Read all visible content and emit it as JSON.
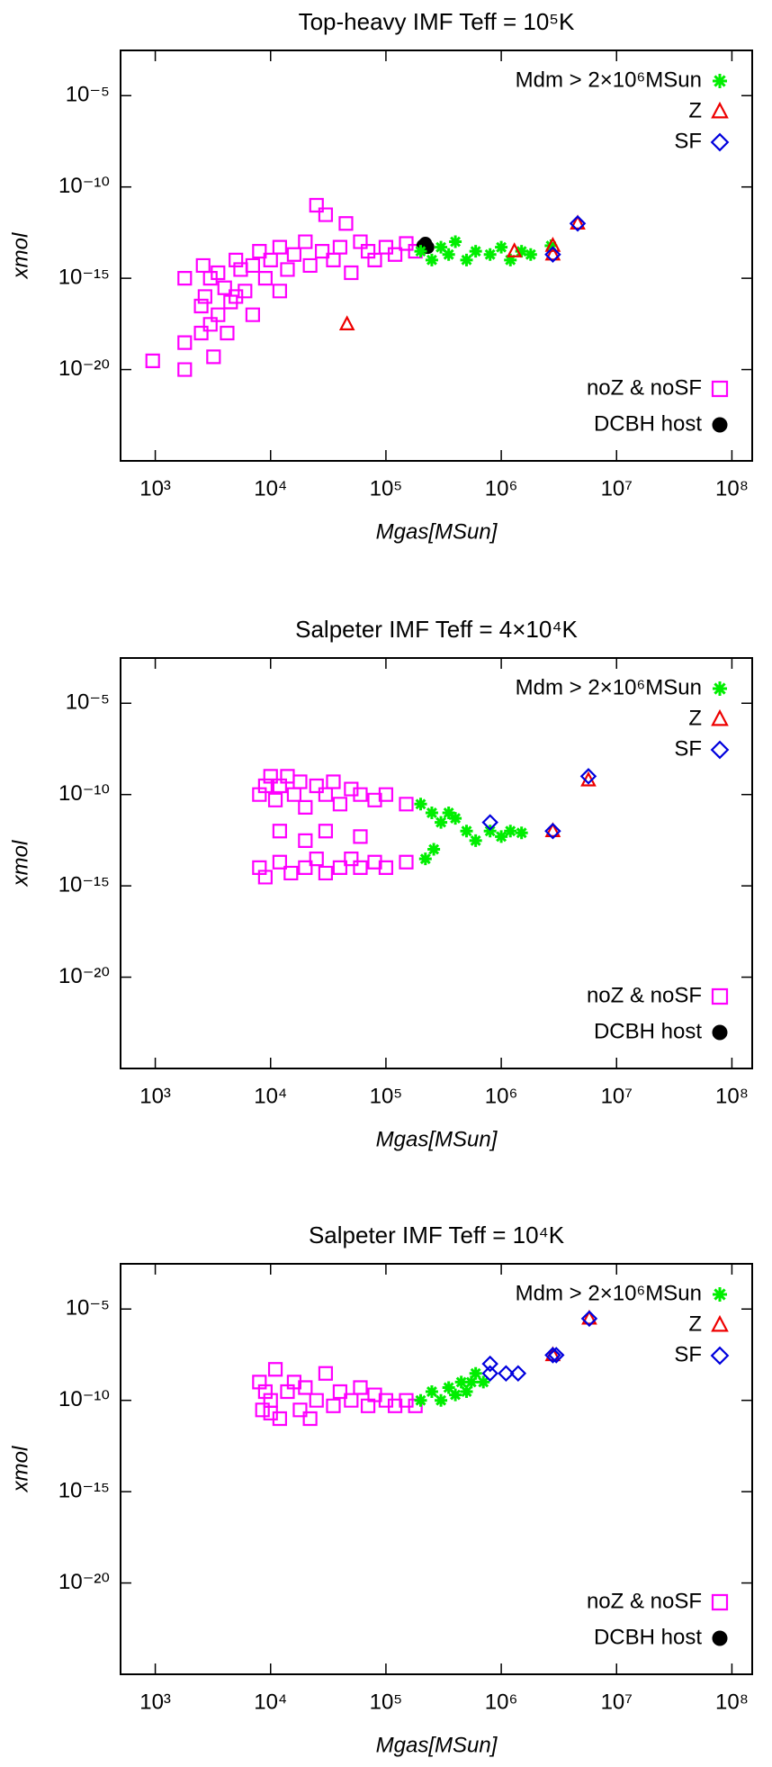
{
  "chart_data": [
    {
      "type": "scatter",
      "title": "Top-heavy IMF Teff = 10⁵K",
      "xlabel": "Mgas[MSun]",
      "ylabel": "xmol",
      "xlim": [
        500,
        150000000
      ],
      "ylim": [
        1e-25,
        0.003
      ],
      "log_x": true,
      "log_y": true,
      "xticks": [
        {
          "value": 1000,
          "label": "10³"
        },
        {
          "value": 10000,
          "label": "10⁴"
        },
        {
          "value": 100000,
          "label": "10⁵"
        },
        {
          "value": 1000000,
          "label": "10⁶"
        },
        {
          "value": 10000000,
          "label": "10⁷"
        },
        {
          "value": 100000000,
          "label": "10⁸"
        }
      ],
      "yticks": [
        {
          "value": 1e-05,
          "label": "10⁻⁵"
        },
        {
          "value": 1e-10,
          "label": "10⁻¹⁰"
        },
        {
          "value": 1e-15,
          "label": "10⁻¹⁵"
        },
        {
          "value": 1e-20,
          "label": "10⁻²⁰"
        }
      ],
      "series": [
        {
          "name": "noZ & noSF",
          "color": "#ff00ff",
          "marker": "square",
          "legend": "lower right",
          "x": [
            950,
            1800,
            1800,
            1800,
            2500,
            2500,
            2600,
            2700,
            3000,
            3200,
            3500,
            3500,
            4000,
            4200,
            4500,
            5000,
            5500,
            6000,
            7000,
            8000,
            9000,
            10000,
            12000,
            14000,
            16000,
            20000,
            22000,
            25000,
            28000,
            30000,
            35000,
            40000,
            45000,
            50000,
            60000,
            70000,
            80000,
            100000,
            120000,
            150000,
            180000,
            7000,
            5000,
            12000,
            3000
          ],
          "y": [
            3e-20,
            1e-20,
            3e-19,
            1e-15,
            3e-17,
            1e-18,
            5e-15,
            1e-16,
            3e-18,
            5e-20,
            1e-17,
            2e-15,
            3e-16,
            1e-18,
            5e-17,
            1e-14,
            3e-15,
            2e-16,
            5e-15,
            3e-14,
            1e-15,
            1e-14,
            5e-14,
            3e-15,
            2e-14,
            1e-13,
            5e-15,
            1e-11,
            3e-14,
            3e-12,
            1e-14,
            5e-14,
            1e-12,
            2e-15,
            1e-13,
            3e-14,
            1e-14,
            5e-14,
            2e-14,
            8e-14,
            3e-14,
            1e-17,
            1e-16,
            2e-16,
            1e-15
          ]
        },
        {
          "name": "DCBH host",
          "color": "#000000",
          "marker": "circle",
          "legend": "lower right",
          "x": [
            210000,
            220000,
            230000
          ],
          "y": [
            6e-14,
            8e-14,
            5e-14
          ]
        },
        {
          "name": "Mdm > 2×10⁶MSun",
          "color": "#00ee00",
          "marker": "star",
          "legend": "upper right",
          "x": [
            200000,
            250000,
            300000,
            350000,
            400000,
            500000,
            600000,
            800000,
            1000000,
            1200000,
            1500000,
            1800000,
            2700000
          ],
          "y": [
            3e-14,
            1e-14,
            5e-14,
            2e-14,
            1e-13,
            1e-14,
            3e-14,
            2e-14,
            5e-14,
            1e-14,
            3e-14,
            2e-14,
            6e-14
          ]
        },
        {
          "name": "Z",
          "color": "#ee0000",
          "marker": "triangle",
          "legend": "upper right",
          "x": [
            46000,
            1300000,
            2800000,
            2800000,
            4600000
          ],
          "y": [
            3e-18,
            3e-14,
            6e-14,
            2e-14,
            1e-12
          ]
        },
        {
          "name": "SF",
          "color": "#0000dd",
          "marker": "diamond",
          "legend": "upper right",
          "x": [
            2800000,
            4600000
          ],
          "y": [
            2e-14,
            1e-12
          ]
        }
      ]
    },
    {
      "type": "scatter",
      "title": "Salpeter IMF Teff = 4×10⁴K",
      "xlabel": "Mgas[MSun]",
      "ylabel": "xmol",
      "xlim": [
        500,
        150000000
      ],
      "ylim": [
        1e-25,
        0.003
      ],
      "log_x": true,
      "log_y": true,
      "xticks": [
        {
          "value": 1000,
          "label": "10³"
        },
        {
          "value": 10000,
          "label": "10⁴"
        },
        {
          "value": 100000,
          "label": "10⁵"
        },
        {
          "value": 1000000,
          "label": "10⁶"
        },
        {
          "value": 10000000,
          "label": "10⁷"
        },
        {
          "value": 100000000,
          "label": "10⁸"
        }
      ],
      "yticks": [
        {
          "value": 1e-05,
          "label": "10⁻⁵"
        },
        {
          "value": 1e-10,
          "label": "10⁻¹⁰"
        },
        {
          "value": 1e-15,
          "label": "10⁻¹⁵"
        },
        {
          "value": 1e-20,
          "label": "10⁻²⁰"
        }
      ],
      "series": [
        {
          "name": "noZ & noSF",
          "color": "#ff00ff",
          "marker": "square",
          "legend": "lower right",
          "x": [
            8000,
            9000,
            10000,
            11000,
            12000,
            14000,
            16000,
            18000,
            20000,
            25000,
            30000,
            35000,
            40000,
            50000,
            60000,
            80000,
            100000,
            150000,
            12000,
            20000,
            8000,
            9000,
            12000,
            15000,
            20000,
            25000,
            30000,
            40000,
            50000,
            60000,
            80000,
            100000,
            150000,
            30000,
            60000
          ],
          "y": [
            1e-10,
            3e-10,
            1e-09,
            5e-11,
            3e-10,
            1e-09,
            1e-10,
            5e-10,
            2e-11,
            3e-10,
            1e-10,
            5e-10,
            3e-11,
            2e-10,
            1e-10,
            5e-11,
            1e-10,
            3e-11,
            1e-12,
            3e-13,
            1e-14,
            3e-15,
            2e-14,
            5e-15,
            1e-14,
            3e-14,
            5e-15,
            1e-14,
            3e-14,
            1e-14,
            2e-14,
            1e-14,
            2e-14,
            1e-12,
            5e-13
          ]
        },
        {
          "name": "DCBH host",
          "color": "#000000",
          "marker": "circle",
          "legend": "lower right",
          "x": [],
          "y": []
        },
        {
          "name": "Mdm > 2×10⁶MSun",
          "color": "#00ee00",
          "marker": "star",
          "legend": "upper right",
          "x": [
            200000,
            250000,
            220000,
            300000,
            350000,
            400000,
            500000,
            600000,
            800000,
            1000000,
            1200000,
            1500000,
            260000
          ],
          "y": [
            3e-11,
            1e-11,
            3e-14,
            3e-12,
            1e-11,
            5e-12,
            1e-12,
            3e-13,
            1e-12,
            5e-13,
            1e-12,
            8e-13,
            1e-13
          ]
        },
        {
          "name": "Z",
          "color": "#ee0000",
          "marker": "triangle",
          "legend": "upper right",
          "x": [
            2800000,
            5700000
          ],
          "y": [
            1e-12,
            6e-10
          ]
        },
        {
          "name": "SF",
          "color": "#0000dd",
          "marker": "diamond",
          "legend": "upper right",
          "x": [
            800000,
            2800000,
            5700000
          ],
          "y": [
            3e-12,
            1e-12,
            1e-09
          ]
        }
      ]
    },
    {
      "type": "scatter",
      "title": "Salpeter IMF Teff = 10⁴K",
      "xlabel": "Mgas[MSun]",
      "ylabel": "xmol",
      "xlim": [
        500,
        150000000
      ],
      "ylim": [
        1e-25,
        0.003
      ],
      "log_x": true,
      "log_y": true,
      "xticks": [
        {
          "value": 1000,
          "label": "10³"
        },
        {
          "value": 10000,
          "label": "10⁴"
        },
        {
          "value": 100000,
          "label": "10⁵"
        },
        {
          "value": 1000000,
          "label": "10⁶"
        },
        {
          "value": 10000000,
          "label": "10⁷"
        },
        {
          "value": 100000000,
          "label": "10⁸"
        }
      ],
      "yticks": [
        {
          "value": 1e-05,
          "label": "10⁻⁵"
        },
        {
          "value": 1e-10,
          "label": "10⁻¹⁰"
        },
        {
          "value": 1e-15,
          "label": "10⁻¹⁵"
        },
        {
          "value": 1e-20,
          "label": "10⁻²⁰"
        }
      ],
      "series": [
        {
          "name": "noZ & noSF",
          "color": "#ff00ff",
          "marker": "square",
          "legend": "lower right",
          "x": [
            8000,
            8500,
            9000,
            10000,
            11000,
            12000,
            14000,
            16000,
            18000,
            20000,
            25000,
            30000,
            35000,
            40000,
            50000,
            60000,
            70000,
            80000,
            100000,
            120000,
            150000,
            180000,
            10000,
            22000
          ],
          "y": [
            1e-09,
            3e-11,
            3e-10,
            1e-10,
            5e-09,
            1e-11,
            3e-10,
            1e-09,
            3e-11,
            5e-10,
            1e-10,
            3e-09,
            5e-11,
            3e-10,
            1e-10,
            5e-10,
            5e-11,
            2e-10,
            1e-10,
            5e-11,
            1e-10,
            5e-11,
            2e-11,
            1e-11
          ]
        },
        {
          "name": "DCBH host",
          "color": "#000000",
          "marker": "circle",
          "legend": "lower right",
          "x": [],
          "y": []
        },
        {
          "name": "Mdm > 2×10⁶MSun",
          "color": "#00ee00",
          "marker": "star",
          "legend": "upper right",
          "x": [
            200000,
            250000,
            300000,
            350000,
            400000,
            450000,
            500000,
            550000,
            600000,
            700000
          ],
          "y": [
            1e-10,
            3e-10,
            1e-10,
            5e-10,
            2e-10,
            1e-09,
            3e-10,
            1e-09,
            3e-09,
            1e-09
          ]
        },
        {
          "name": "Z",
          "color": "#ee0000",
          "marker": "triangle",
          "legend": "upper right",
          "x": [
            2800000,
            5800000
          ],
          "y": [
            3e-08,
            3e-06
          ]
        },
        {
          "name": "SF",
          "color": "#0000dd",
          "marker": "diamond",
          "legend": "upper right",
          "x": [
            800000,
            800000,
            1100000,
            1400000,
            2800000,
            3000000,
            5800000
          ],
          "y": [
            3e-09,
            1e-08,
            3e-09,
            3e-09,
            3e-08,
            3e-08,
            3e-06
          ]
        }
      ]
    }
  ]
}
